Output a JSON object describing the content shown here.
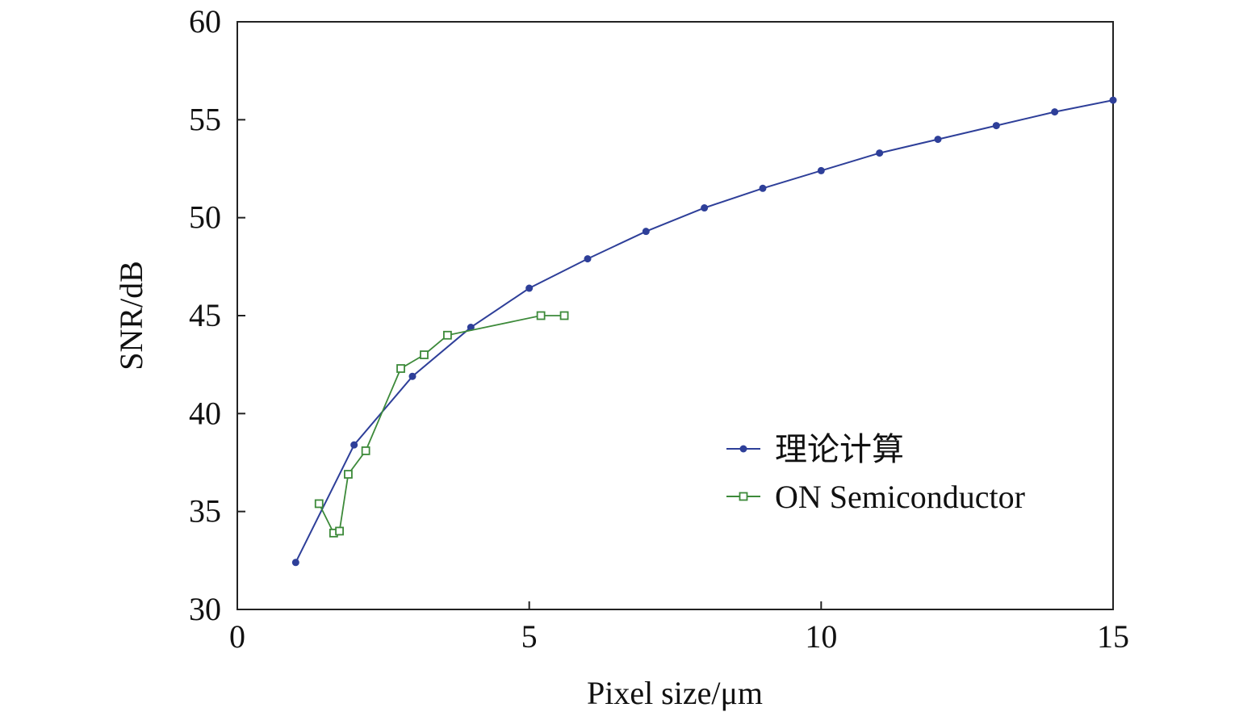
{
  "chart_data": {
    "type": "line",
    "title": "",
    "xlabel": "Pixel size/μm",
    "ylabel": "SNR/dB",
    "xlim": [
      0,
      15
    ],
    "ylim": [
      30,
      60
    ],
    "xticks": [
      0,
      5,
      10,
      15
    ],
    "yticks": [
      30,
      35,
      40,
      45,
      50,
      55,
      60
    ],
    "grid": false,
    "legend_position": "center-right",
    "series": [
      {
        "name": "理论计算",
        "color": "#2e3f99",
        "marker": "filled-circle",
        "points": [
          [
            1,
            32.4
          ],
          [
            2,
            38.4
          ],
          [
            3,
            41.9
          ],
          [
            4,
            44.4
          ],
          [
            5,
            46.4
          ],
          [
            6,
            47.9
          ],
          [
            7,
            49.3
          ],
          [
            8,
            50.5
          ],
          [
            9,
            51.5
          ],
          [
            10,
            52.4
          ],
          [
            11,
            53.3
          ],
          [
            12,
            54.0
          ],
          [
            13,
            54.7
          ],
          [
            14,
            55.4
          ],
          [
            15,
            56.0
          ]
        ]
      },
      {
        "name": "ON Semiconductor",
        "color": "#3d8a3a",
        "marker": "open-square",
        "points": [
          [
            1.4,
            35.4
          ],
          [
            1.65,
            33.9
          ],
          [
            1.75,
            34.0
          ],
          [
            1.9,
            36.9
          ],
          [
            2.2,
            38.1
          ],
          [
            2.8,
            42.3
          ],
          [
            3.2,
            43.0
          ],
          [
            3.6,
            44.0
          ],
          [
            5.2,
            45.0
          ],
          [
            5.6,
            45.0
          ]
        ]
      }
    ]
  }
}
